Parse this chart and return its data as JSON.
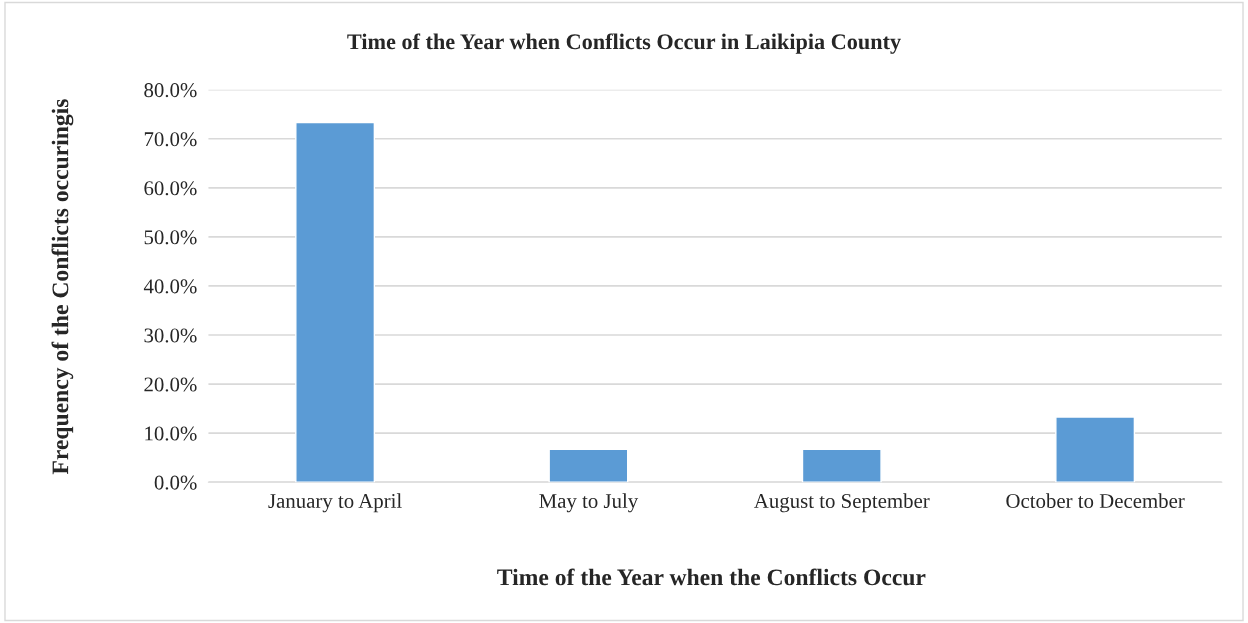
{
  "chart_data": {
    "type": "bar",
    "title": "Time of the Year when Conflicts Occur in Laikipia County",
    "xlabel": "Time of the Year when the Conflicts Occur",
    "ylabel": "Frequency of the Conflicts occuringis",
    "categories": [
      "January to April",
      "May to July",
      "August to September",
      "October to December"
    ],
    "values": [
      73.3,
      6.7,
      6.7,
      13.3
    ],
    "color": "#5b9bd5",
    "ylim": [
      0,
      80
    ],
    "yticks": [
      {
        "value": 0,
        "label": "0.0%"
      },
      {
        "value": 10,
        "label": "10.0%"
      },
      {
        "value": 20,
        "label": "20.0%"
      },
      {
        "value": 30,
        "label": "30.0%"
      },
      {
        "value": 40,
        "label": "40.0%"
      },
      {
        "value": 50,
        "label": "50.0%"
      },
      {
        "value": 60,
        "label": "60.0%"
      },
      {
        "value": 70,
        "label": "70.0%"
      },
      {
        "value": 80,
        "label": "80.0%"
      }
    ],
    "grid": "y"
  }
}
